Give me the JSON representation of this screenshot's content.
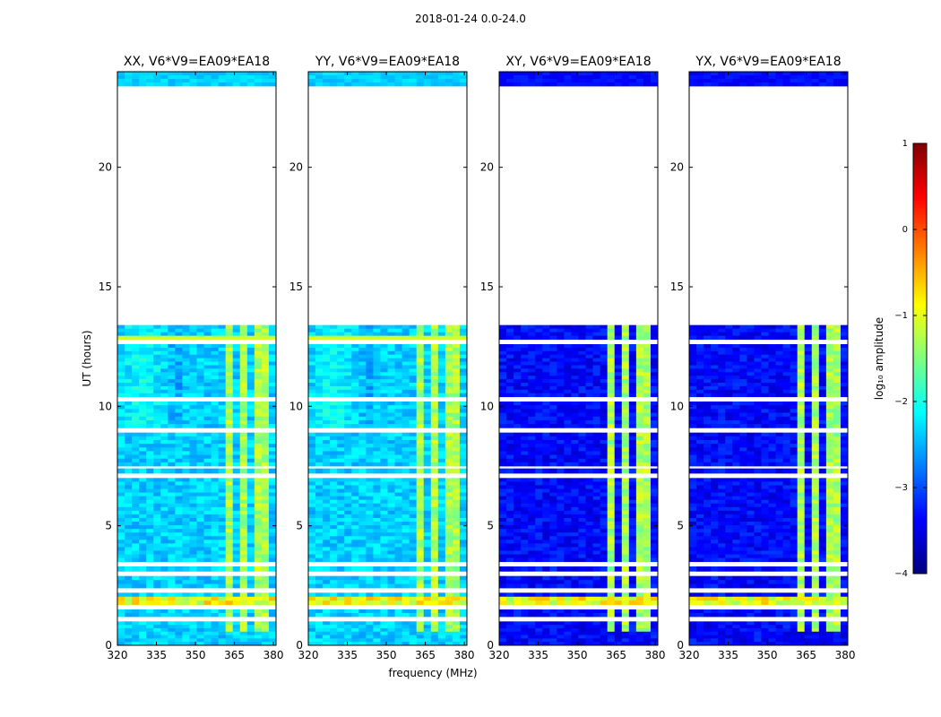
{
  "chart_data": {
    "type": "heatmap",
    "suptitle": "2018-01-24 0.0-24.0",
    "xlabel": "frequency (MHz)",
    "ylabel": "UT (hours)",
    "xlim": [
      320,
      381
    ],
    "ylim": [
      0,
      24
    ],
    "x_ticks": [
      "320",
      "335",
      "350",
      "365",
      "380"
    ],
    "x_tick_values": [
      320,
      335,
      350,
      365,
      380
    ],
    "y_ticks": [
      "0",
      "5",
      "10",
      "15",
      "20"
    ],
    "y_tick_values": [
      0,
      5,
      10,
      15,
      20
    ],
    "panels": [
      {
        "title": "XX, V6*V9=EA09*EA18",
        "base_level": -2.2
      },
      {
        "title": "YY, V6*V9=EA09*EA18",
        "base_level": -2.2
      },
      {
        "title": "XY, V6*V9=EA09*EA18",
        "base_level": -3.2
      },
      {
        "title": "YX, V6*V9=EA09*EA18",
        "base_level": -3.2
      }
    ],
    "data_hours": [
      [
        0,
        1.0
      ],
      [
        1.2,
        1.5
      ],
      [
        1.7,
        2.2
      ],
      [
        2.4,
        2.9
      ],
      [
        3.1,
        3.3
      ],
      [
        3.5,
        7.0
      ],
      [
        7.2,
        7.4
      ],
      [
        7.5,
        8.9
      ],
      [
        9.1,
        10.2
      ],
      [
        10.4,
        12.6
      ],
      [
        12.8,
        13.4
      ],
      [
        23.4,
        24.0
      ]
    ],
    "rfi_band_centers_mhz": [
      364,
      368.5,
      373,
      378
    ],
    "rfi_band_width_mhz": 3.2,
    "rfi_level": -1.3,
    "strong_rfi_hours": [
      1.7,
      2.1
    ],
    "colorbar": {
      "label": "log₁₀ amplitude",
      "min": -4,
      "max": 1,
      "ticks": [
        "1",
        "0",
        "−1",
        "−2",
        "−3",
        "−4"
      ],
      "tick_values": [
        1,
        0,
        -1,
        -2,
        -3,
        -4
      ],
      "colormap": "jet"
    }
  }
}
